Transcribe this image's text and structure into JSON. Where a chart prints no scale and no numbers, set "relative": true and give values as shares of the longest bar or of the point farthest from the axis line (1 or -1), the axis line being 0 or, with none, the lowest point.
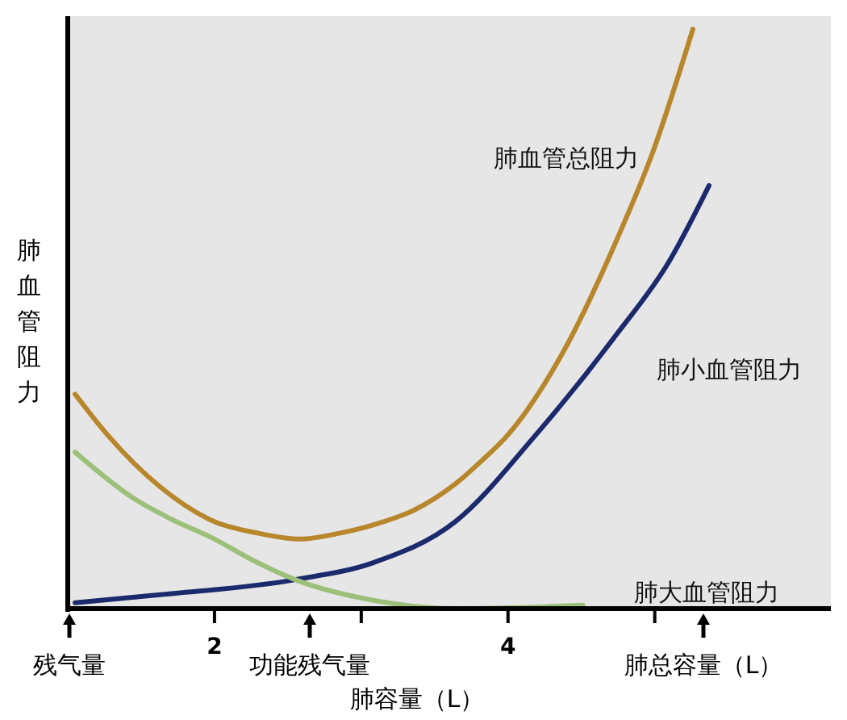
{
  "chart_data": {
    "type": "line",
    "relative": true,
    "xlabel": "肺容量（L）",
    "ylabel": "肺血管阻力",
    "xlim": [
      1,
      6.2
    ],
    "xticks": [
      2,
      {
        "value": 3,
        "label": null
      },
      4,
      {
        "value": 5,
        "label": null
      }
    ],
    "grid": false,
    "annotations": [
      "残气量",
      "功能残气量",
      "肺总容量（L）"
    ],
    "marker": "none",
    "line_style": "solid",
    "series": [
      {
        "name": "肺血管总阻力",
        "color": "#b8862b",
        "x": [
          1.05,
          1.27,
          1.63,
          2.0,
          2.3,
          2.58,
          2.85,
          3.09,
          3.36,
          3.64,
          3.82,
          4.0,
          4.37,
          4.73,
          4.99,
          5.26
        ],
        "values": [
          0.37,
          0.3,
          0.21,
          0.15,
          0.13,
          0.12,
          0.13,
          0.145,
          0.17,
          0.215,
          0.255,
          0.3,
          0.44,
          0.63,
          0.79,
          1.0
        ]
      },
      {
        "name": "肺小血管阻力",
        "color": "#1a2a6c",
        "x": [
          1.05,
          1.63,
          2.55,
          3.09,
          3.64,
          4.19,
          4.73,
          5.1,
          5.37
        ],
        "values": [
          0.01,
          0.024,
          0.05,
          0.08,
          0.15,
          0.3,
          0.47,
          0.6,
          0.73
        ]
      },
      {
        "name": "肺大血管阻力",
        "color": "#9cc07a",
        "x": [
          1.05,
          1.45,
          1.7,
          2.0,
          2.25,
          2.55,
          3.09,
          3.64,
          4.51
        ],
        "values": [
          0.27,
          0.19,
          0.155,
          0.12,
          0.085,
          0.05,
          0.014,
          0.0,
          0.006
        ]
      }
    ]
  }
}
